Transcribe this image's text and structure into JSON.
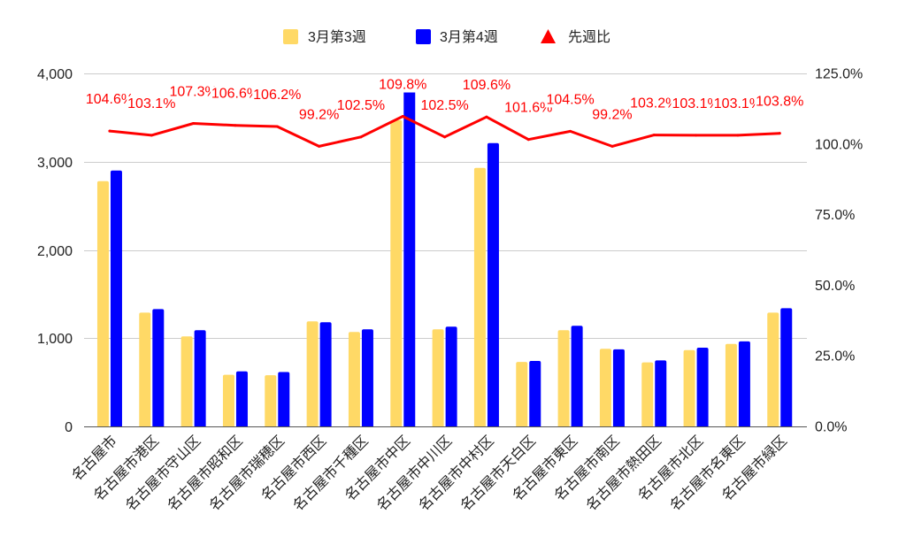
{
  "chart_data": {
    "type": "bar",
    "categories": [
      "名古屋市",
      "名古屋市港区",
      "名古屋市守山区",
      "名古屋市昭和区",
      "名古屋市瑞穂区",
      "名古屋市西区",
      "名古屋市千種区",
      "名古屋市中区",
      "名古屋市中川区",
      "名古屋市中村区",
      "名古屋市天白区",
      "名古屋市東区",
      "名古屋市南区",
      "名古屋市熱田区",
      "名古屋市北区",
      "名古屋市名東区",
      "名古屋市緑区"
    ],
    "series": [
      {
        "name": "3月第3週",
        "type": "bar",
        "axis": "left",
        "color": "#ffd966",
        "legend_marker": "square",
        "values": [
          2780,
          1290,
          1020,
          585,
          580,
          1190,
          1070,
          3470,
          1100,
          2930,
          730,
          1090,
          880,
          725,
          865,
          935,
          1290
        ]
      },
      {
        "name": "3月第4週",
        "type": "bar",
        "axis": "left",
        "color": "#0000ff",
        "legend_marker": "square",
        "values": [
          2900,
          1330,
          1090,
          624,
          616,
          1180,
          1100,
          3810,
          1130,
          3210,
          742,
          1140,
          873,
          748,
          892,
          964,
          1340
        ]
      },
      {
        "name": "先週比",
        "type": "line",
        "axis": "right",
        "color": "#ff0000",
        "legend_marker": "triangle",
        "unit": "%",
        "values": [
          104.6,
          103.1,
          107.3,
          106.6,
          106.2,
          99.2,
          102.5,
          109.8,
          102.5,
          109.6,
          101.6,
          104.5,
          99.2,
          103.2,
          103.1,
          103.1,
          103.8
        ],
        "data_labels": [
          "104.6%",
          "103.1%",
          "107.3%",
          "106.6%",
          "106.2%",
          "99.2%",
          "102.5%",
          "109.8%",
          "102.5%",
          "109.6%",
          "101.6%",
          "104.5%",
          "99.2%",
          "103.2%",
          "103.1%",
          "103.1%",
          "103.8%"
        ]
      }
    ],
    "y_left": {
      "range": [
        0,
        4000
      ],
      "ticks": [
        0,
        1000,
        2000,
        3000,
        4000
      ],
      "tick_labels": [
        "0",
        "1,000",
        "2,000",
        "3,000",
        "4,000"
      ]
    },
    "y_right": {
      "range": [
        0,
        125
      ],
      "unit": "%",
      "ticks": [
        0,
        25,
        50,
        75,
        100,
        125
      ],
      "tick_labels": [
        "0.0%",
        "25.0%",
        "50.0%",
        "75.0%",
        "100.0%",
        "125.0%"
      ]
    },
    "grid": true,
    "legend_position": "top"
  }
}
